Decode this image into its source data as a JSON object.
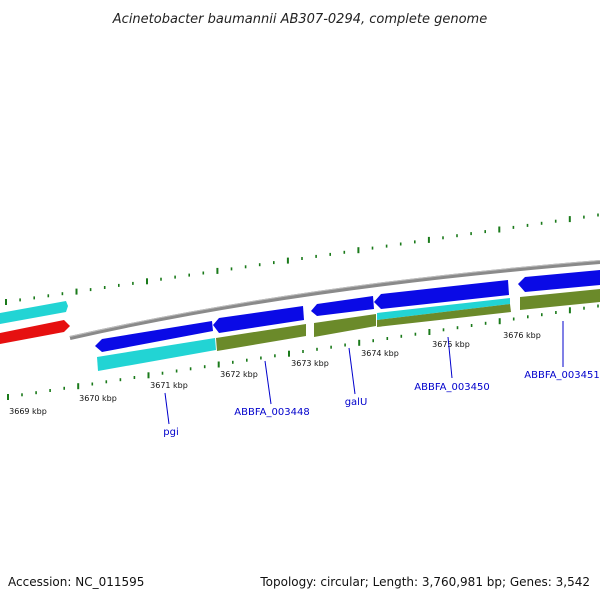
{
  "title": "Acinetobacter baumannii AB307-0294, complete genome",
  "footer": {
    "accession": "Accession: NC_011595",
    "summary": "Topology: circular; Length: 3,760,981 bp; Genes: 3,542"
  },
  "colors": {
    "backbone": "#888888",
    "tick": "#1a7a1a",
    "cds_blue": "#0a0ae6",
    "cds_cyan": "#22d4d4",
    "cds_olive": "#6b8a2a",
    "cds_red": "#e61010",
    "label": "#0000cc"
  },
  "ticks": {
    "labels": [
      "3669 kbp",
      "3670 kbp",
      "3671 kbp",
      "3672 kbp",
      "3673 kbp",
      "3674 kbp",
      "3675 kbp",
      "3676 kbp"
    ]
  },
  "genes": [
    {
      "name": "pgi"
    },
    {
      "name": "ABBFA_003448"
    },
    {
      "name": "galU"
    },
    {
      "name": "ABBFA_003450"
    },
    {
      "name": "ABBFA_003451"
    }
  ]
}
